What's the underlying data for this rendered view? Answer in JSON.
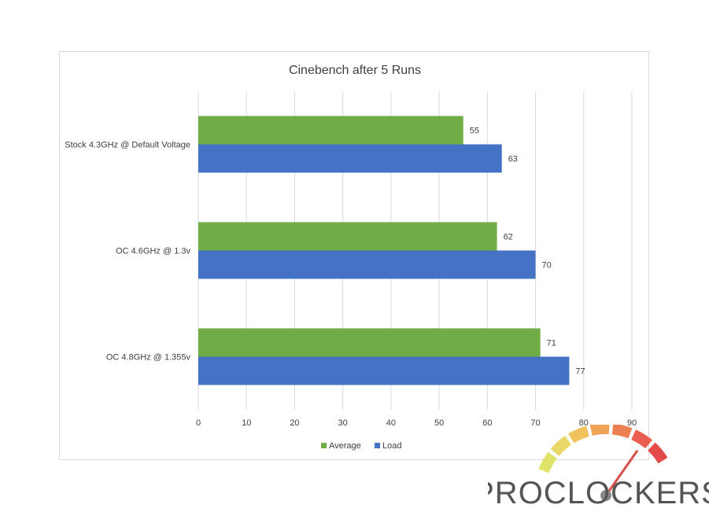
{
  "chart_data": {
    "type": "bar",
    "orientation": "horizontal",
    "title": "Cinebench after 5 Runs",
    "categories": [
      "Stock 4.3GHz @ Default Voltage",
      "OC 4.6GHz @ 1.3v",
      "OC 4.8GHz @ 1.355v"
    ],
    "series": [
      {
        "name": "Average",
        "color": "#70ad47",
        "values": [
          55,
          62,
          71
        ]
      },
      {
        "name": "Load",
        "color": "#4472c4",
        "values": [
          63,
          70,
          77
        ]
      }
    ],
    "xlim": [
      0,
      90
    ],
    "xticks": [
      0,
      10,
      20,
      30,
      40,
      50,
      60,
      70,
      80,
      90
    ],
    "xlabel": "",
    "ylabel": "",
    "grid": "vertical",
    "legend": "bottom",
    "data_labels": true
  },
  "watermark": {
    "text": "PROCLOCKERS",
    "gauge_colors": [
      "#dfe36a",
      "#e9d866",
      "#f2c25c",
      "#f0a255",
      "#ec8052",
      "#e95e50",
      "#e54a4a"
    ],
    "needle_color": "#d8504a",
    "text_color": "#555555"
  }
}
